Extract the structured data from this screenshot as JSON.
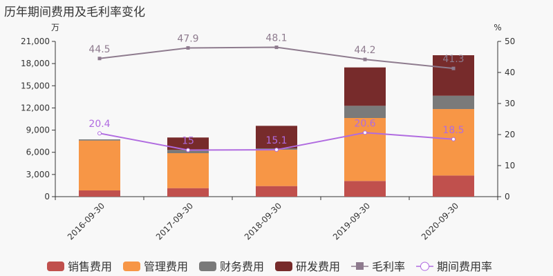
{
  "chart_data": {
    "type": "bar",
    "title": "历年期间费用及毛利率变化",
    "left_unit": "万",
    "right_unit": "%",
    "categories": [
      "2016-09-30",
      "2017-09-30",
      "2018-09-30",
      "2019-09-30",
      "2020-09-30"
    ],
    "left_axis": {
      "range": [
        0,
        21000
      ],
      "ticks": [
        "0",
        "3,000",
        "6,000",
        "9,000",
        "12,000",
        "15,000",
        "18,000",
        "21,000"
      ],
      "tick_values": [
        0,
        3000,
        6000,
        9000,
        12000,
        15000,
        18000,
        21000
      ]
    },
    "right_axis": {
      "range": [
        0,
        50
      ],
      "ticks": [
        "0",
        "10",
        "20",
        "30",
        "40",
        "50"
      ],
      "tick_values": [
        0,
        10,
        20,
        30,
        40,
        50
      ]
    },
    "grid": false,
    "legend_position": "bottom",
    "stacked_series": [
      {
        "name": "销售费用",
        "color": "#c0504d",
        "values": [
          840,
          1150,
          1430,
          2120,
          2860
        ]
      },
      {
        "name": "管理费用",
        "color": "#f79646",
        "values": [
          6750,
          4730,
          4920,
          8520,
          8990
        ]
      },
      {
        "name": "财务费用",
        "color": "#7a7a7a",
        "values": [
          160,
          440,
          180,
          1650,
          1800
        ]
      },
      {
        "name": "研发费用",
        "color": "#772b2b",
        "values": [
          0,
          1680,
          3050,
          5190,
          5480
        ]
      }
    ],
    "line_series": [
      {
        "name": "毛利率",
        "color": "#8e7b8e",
        "marker": "square",
        "values": [
          44.5,
          47.9,
          48.1,
          44.2,
          41.3
        ],
        "labels": [
          "44.5",
          "47.9",
          "48.1",
          "44.2",
          "41.3"
        ]
      },
      {
        "name": "期间费用率",
        "color": "#b06be0",
        "marker": "circle",
        "values": [
          20.4,
          15,
          15.1,
          20.6,
          18.5
        ],
        "labels": [
          "20.4",
          "15",
          "15.1",
          "20.6",
          "18.5"
        ]
      }
    ]
  }
}
